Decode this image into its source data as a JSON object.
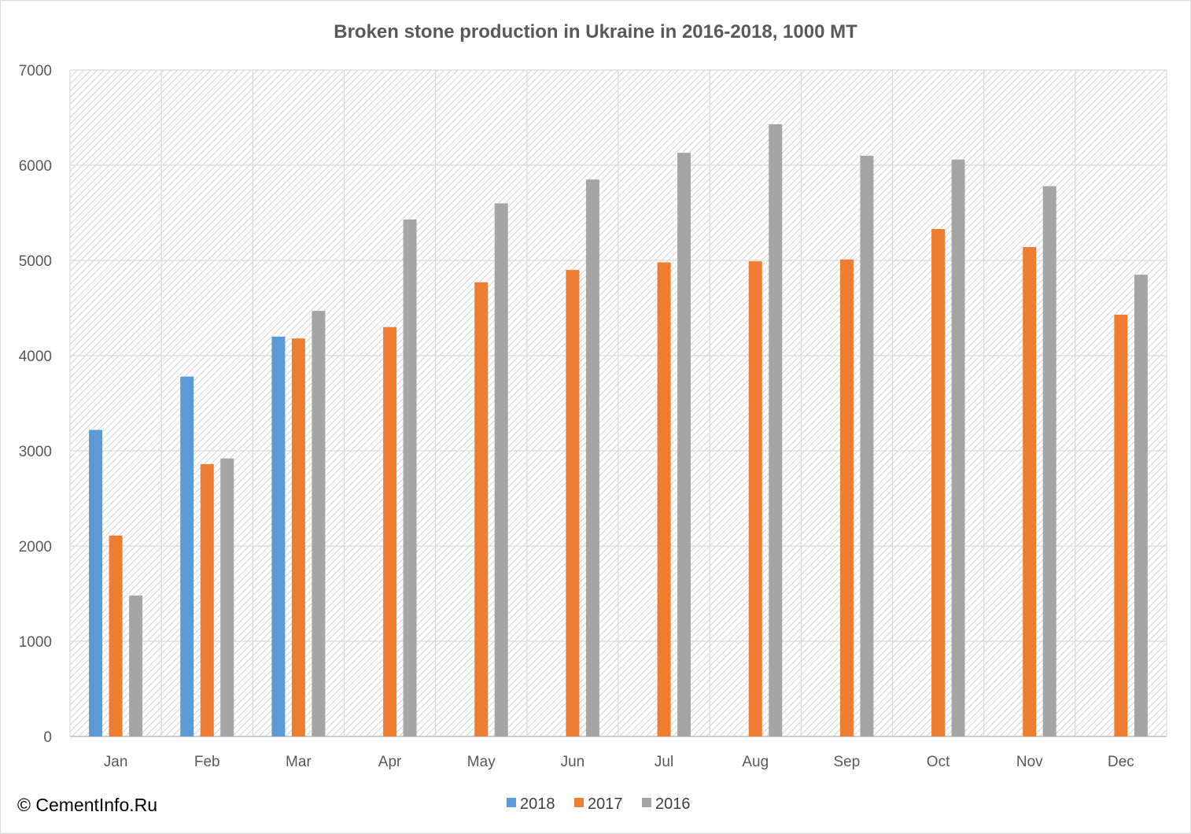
{
  "chart_data": {
    "type": "bar",
    "title": "Broken stone production in Ukraine in 2016-2018, 1000 MT",
    "xlabel": "",
    "ylabel": "",
    "ylim": [
      0,
      7000
    ],
    "yticks": [
      0,
      1000,
      2000,
      3000,
      4000,
      5000,
      6000,
      7000
    ],
    "grid": true,
    "legend_position": "bottom",
    "categories": [
      "Jan",
      "Feb",
      "Mar",
      "Apr",
      "May",
      "Jun",
      "Jul",
      "Aug",
      "Sep",
      "Oct",
      "Nov",
      "Dec"
    ],
    "series": [
      {
        "name": "2018",
        "color": "#5b9bd5",
        "values": [
          3220,
          3780,
          4200,
          null,
          null,
          null,
          null,
          null,
          null,
          null,
          null,
          null
        ]
      },
      {
        "name": "2017",
        "color": "#ed7d31",
        "values": [
          2110,
          2860,
          4180,
          4300,
          4770,
          4900,
          4980,
          4990,
          5010,
          5330,
          5140,
          4430
        ]
      },
      {
        "name": "2016",
        "color": "#a5a5a5",
        "values": [
          1480,
          2920,
          4470,
          5430,
          5600,
          5850,
          6130,
          6430,
          6100,
          6060,
          5780,
          4850
        ]
      }
    ]
  },
  "footer": {
    "copyright": "© CementInfo.Ru"
  }
}
